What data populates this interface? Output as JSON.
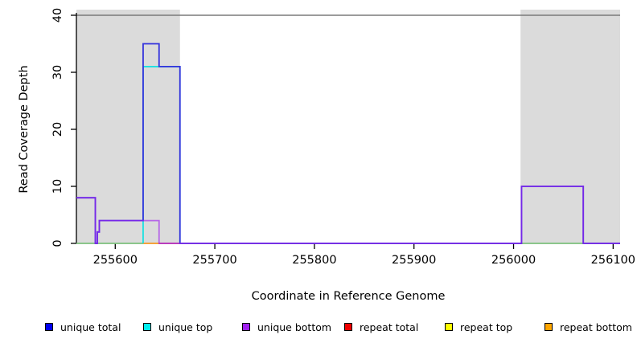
{
  "chart_data": {
    "type": "line",
    "subtype": "step-coverage",
    "title": "",
    "xlabel": "Coordinate in Reference Genome",
    "ylabel": "Read Coverage Depth",
    "xlim": [
      255561,
      256107
    ],
    "ylim": [
      0,
      40
    ],
    "xticks": [
      255600,
      255700,
      255800,
      255900,
      256000,
      256100
    ],
    "yticks": [
      0,
      10,
      20,
      30,
      40
    ],
    "grid": false,
    "legend_position": "bottom",
    "frame": {
      "top_rule_color": "#7a7a7a",
      "axis_color": "#000000",
      "shade_color": "#dbdbdb"
    },
    "shaded_regions": [
      {
        "name": "repeat-region-left",
        "x0": 255561,
        "x1": 255665
      },
      {
        "name": "repeat-region-right",
        "x0": 256007,
        "x1": 256107
      }
    ],
    "baseline_overplot": [
      {
        "x0": 255561,
        "x1": 255628,
        "color": "#84c884"
      },
      {
        "x0": 255628,
        "x1": 255644,
        "color": "#ffa028"
      },
      {
        "x0": 255644,
        "x1": 255665,
        "color": "#e0507a"
      },
      {
        "x0": 256008,
        "x1": 256070,
        "color": "#84c884"
      }
    ],
    "series": [
      {
        "key": "unique_top",
        "label": "unique top",
        "color": "#00e2e2",
        "opacity": 1,
        "width": 1.6,
        "draw": true,
        "x_end": 255666,
        "points": [
          [
            255628,
            0
          ],
          [
            255628,
            31
          ],
          [
            255665,
            0
          ]
        ]
      },
      {
        "key": "unique_total",
        "label": "unique total",
        "color": "#3332dc",
        "opacity": 1,
        "width": 1.8,
        "draw": true,
        "x_end": 256107,
        "points": [
          [
            255561,
            8
          ],
          [
            255580,
            0
          ],
          [
            255582,
            2
          ],
          [
            255584,
            4
          ],
          [
            255628,
            35
          ],
          [
            255644,
            31
          ],
          [
            255665,
            0
          ],
          [
            256008,
            10
          ],
          [
            256070,
            0
          ]
        ]
      },
      {
        "key": "unique_bottom",
        "label": "unique bottom",
        "color": "#a020f0",
        "opacity": 0.62,
        "width": 1.8,
        "draw": true,
        "x_end": 256107,
        "points": [
          [
            255561,
            8
          ],
          [
            255580,
            0
          ],
          [
            255582,
            2
          ],
          [
            255584,
            4
          ],
          [
            255644,
            0
          ],
          [
            256008,
            10
          ],
          [
            256070,
            0
          ]
        ]
      },
      {
        "key": "repeat_total",
        "label": "repeat total",
        "color": "#ee0000",
        "opacity": 1,
        "width": 1.5,
        "draw": false,
        "x_end": 255665,
        "points": [
          [
            255644,
            0
          ]
        ]
      },
      {
        "key": "repeat_top",
        "label": "repeat top",
        "color": "#ffff00",
        "opacity": 1,
        "width": 1.5,
        "draw": false,
        "x_end": 255665,
        "points": [
          [
            255561,
            0
          ]
        ]
      },
      {
        "key": "repeat_bottom",
        "label": "repeat bottom",
        "color": "#ffa500",
        "opacity": 1,
        "width": 1.5,
        "draw": false,
        "x_end": 255644,
        "points": [
          [
            255628,
            0
          ]
        ]
      }
    ],
    "legend": [
      {
        "label": "unique total",
        "color": "#0000ee"
      },
      {
        "label": "unique top",
        "color": "#00eeee"
      },
      {
        "label": "unique bottom",
        "color": "#a020f0"
      },
      {
        "label": "repeat total",
        "color": "#ee0000"
      },
      {
        "label": "repeat top",
        "color": "#ffff00"
      },
      {
        "label": "repeat bottom",
        "color": "#ffa500"
      }
    ]
  }
}
